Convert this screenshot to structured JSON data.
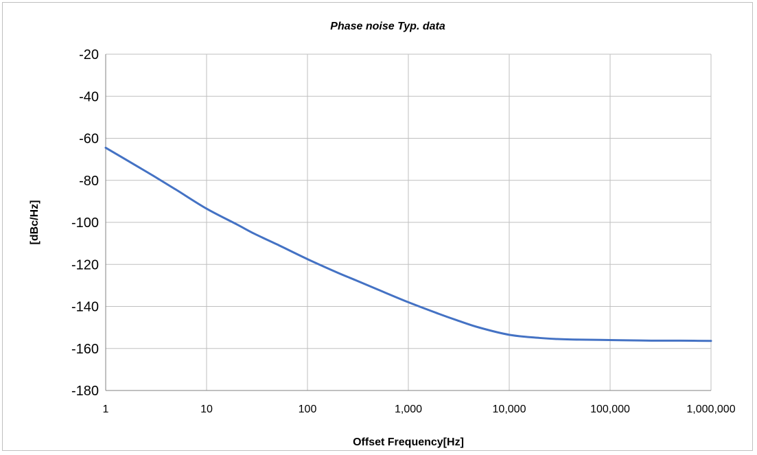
{
  "chart_data": {
    "type": "line",
    "title": "Phase noise Typ. data",
    "xlabel": "Offset Frequency[Hz]",
    "ylabel": "[dBc/Hz]",
    "x_scale": "log",
    "xlim": [
      1,
      1000000
    ],
    "ylim": [
      -180,
      -20
    ],
    "x_ticks": [
      1,
      10,
      100,
      1000,
      10000,
      100000,
      1000000
    ],
    "x_tick_labels": [
      "1",
      "10",
      "100",
      "1,000",
      "10,000",
      "100,000",
      "1,000,000"
    ],
    "y_ticks": [
      -20,
      -40,
      -60,
      -80,
      -100,
      -120,
      -140,
      -160,
      -180
    ],
    "grid": true,
    "legend": "none",
    "series": [
      {
        "color": "#4472c4",
        "x": [
          1,
          2,
          3,
          5,
          10,
          20,
          30,
          50,
          100,
          200,
          300,
          500,
          1000,
          2000,
          3000,
          5000,
          10000,
          20000,
          30000,
          50000,
          100000,
          200000,
          300000,
          500000,
          1000000
        ],
        "y": [
          -64.5,
          -73,
          -78,
          -84.5,
          -93.5,
          -101,
          -105.5,
          -110.5,
          -117.5,
          -124,
          -127.5,
          -132,
          -138,
          -143.5,
          -146.5,
          -150,
          -153.5,
          -155,
          -155.5,
          -155.8,
          -156,
          -156.2,
          -156.3,
          -156.3,
          -156.4
        ]
      }
    ]
  }
}
